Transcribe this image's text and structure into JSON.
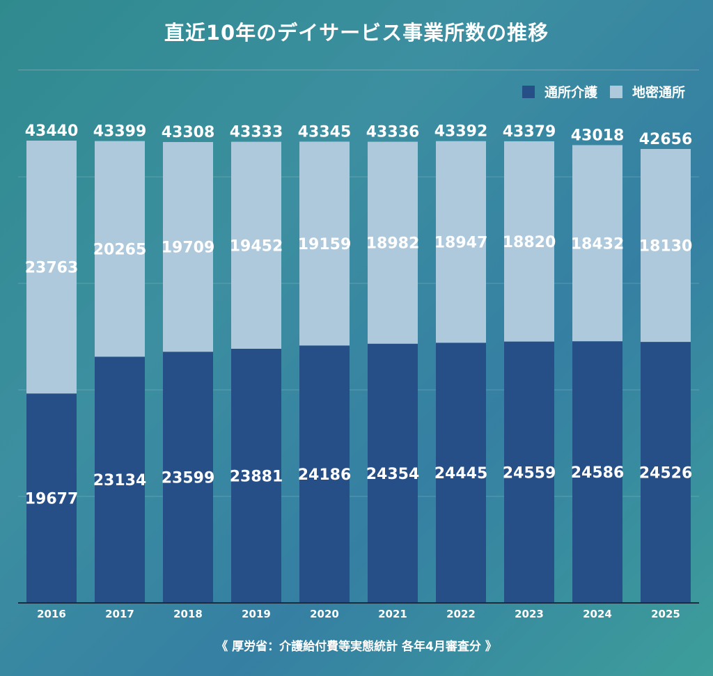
{
  "title": "直近10年のデイサービス事業所数の推移",
  "source": "《 厚労省：介護給付費等実態統計 各年4月審査分 》",
  "colors": {
    "tsusho": "#274f87",
    "chiiki": "#aec8dc",
    "label": "#ffffff"
  },
  "chart_data": {
    "type": "bar",
    "stacked": true,
    "title": "直近10年のデイサービス事業所数の推移",
    "categories": [
      "2016",
      "2017",
      "2018",
      "2019",
      "2020",
      "2021",
      "2022",
      "2023",
      "2024",
      "2025"
    ],
    "series": [
      {
        "name": "通所介護",
        "color": "#274f87",
        "values": [
          19677,
          23134,
          23599,
          23881,
          24186,
          24354,
          24445,
          24559,
          24586,
          24526
        ]
      },
      {
        "name": "地密通所",
        "color": "#aec8dc",
        "values": [
          23763,
          20265,
          19709,
          19452,
          19159,
          18982,
          18947,
          18820,
          18432,
          18130
        ]
      }
    ],
    "totals": [
      43440,
      43399,
      43308,
      43333,
      43345,
      43336,
      43392,
      43379,
      43018,
      42656
    ],
    "ylim": [
      0,
      50000
    ],
    "legend_position": "top-right",
    "grid": true
  }
}
